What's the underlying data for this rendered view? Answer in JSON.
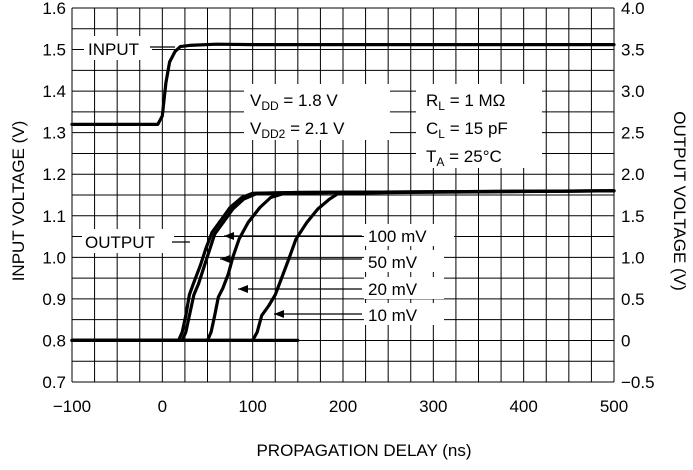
{
  "chart_data": {
    "type": "line",
    "title": "",
    "xlabel": "PROPAGATION DELAY (ns)",
    "ylabel_left": "INPUT VOLTAGE (V)",
    "ylabel_right": "OUTPUT VOLTAGE (V)",
    "xlim": [
      -100,
      500
    ],
    "ylim_left": [
      0.7,
      1.6
    ],
    "ylim_right": [
      -0.5,
      4.0
    ],
    "x_ticks": [
      "-100",
      "0",
      "100",
      "200",
      "300",
      "400",
      "500"
    ],
    "y_left_ticks": [
      "0.7",
      "0.8",
      "0.9",
      "1.0",
      "1.1",
      "1.2",
      "1.3",
      "1.4",
      "1.5",
      "1.6"
    ],
    "y_right_ticks": [
      "-0.5",
      "0",
      "0.5",
      "1.0",
      "1.5",
      "2.0",
      "2.5",
      "3.0",
      "3.5",
      "4.0"
    ],
    "grid": true,
    "conditions": {
      "vdd": {
        "sym": "V",
        "sub": "DD",
        "rest": " = 1.8 V"
      },
      "vdd2": {
        "sym": "V",
        "sub": "DD2",
        "rest": " = 2.1 V"
      },
      "rl": {
        "sym": "R",
        "sub": "L",
        "rest": " = 1 MΩ"
      },
      "cl": {
        "sym": "C",
        "sub": "L",
        "rest": " = 15 pF"
      },
      "ta": {
        "sym": "T",
        "sub": "A",
        "rest": " = 25°C"
      }
    },
    "series": [
      {
        "name": "INPUT",
        "axis": "left",
        "x": [
          -100,
          -5,
          0,
          4,
          8,
          14,
          20,
          30,
          60,
          100,
          200,
          300,
          400,
          500
        ],
        "y": [
          1.32,
          1.32,
          1.34,
          1.42,
          1.47,
          1.495,
          1.507,
          1.51,
          1.513,
          1.512,
          1.512,
          1.512,
          1.512,
          1.512
        ]
      },
      {
        "name": "OUTPUT",
        "axis": "right",
        "x": [
          -100,
          150
        ],
        "y": [
          0.0,
          0.0
        ]
      },
      {
        "name": "100 mV",
        "axis": "right",
        "x": [
          -100,
          18,
          22,
          26,
          30,
          35,
          42,
          48,
          55,
          65,
          75,
          88,
          100,
          150,
          500
        ],
        "y": [
          0.0,
          0.0,
          0.1,
          0.3,
          0.55,
          0.7,
          0.9,
          1.1,
          1.3,
          1.45,
          1.6,
          1.72,
          1.77,
          1.78,
          1.8
        ]
      },
      {
        "name": "50 mV",
        "axis": "right",
        "x": [
          -100,
          22,
          26,
          30,
          35,
          40,
          46,
          52,
          58,
          68,
          78,
          90,
          105,
          150,
          500
        ],
        "y": [
          0.0,
          0.0,
          0.1,
          0.3,
          0.55,
          0.68,
          0.88,
          1.08,
          1.28,
          1.43,
          1.58,
          1.7,
          1.77,
          1.78,
          1.8
        ]
      },
      {
        "name": "20 mV",
        "axis": "right",
        "x": [
          -100,
          50,
          54,
          58,
          62,
          67,
          73,
          78,
          85,
          95,
          108,
          120,
          135,
          200,
          500
        ],
        "y": [
          0.0,
          0.0,
          0.1,
          0.3,
          0.52,
          0.63,
          0.8,
          1.0,
          1.22,
          1.42,
          1.6,
          1.72,
          1.77,
          1.78,
          1.8
        ]
      },
      {
        "name": "10 mV",
        "axis": "right",
        "x": [
          -100,
          100,
          105,
          110,
          118,
          125,
          132,
          140,
          148,
          160,
          172,
          185,
          195,
          250,
          500
        ],
        "y": [
          0.0,
          0.0,
          0.1,
          0.3,
          0.42,
          0.55,
          0.75,
          0.98,
          1.22,
          1.42,
          1.58,
          1.7,
          1.77,
          1.78,
          1.8
        ]
      }
    ]
  }
}
